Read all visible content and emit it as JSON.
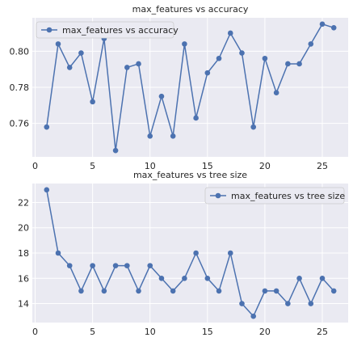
{
  "chart_data": [
    {
      "type": "line",
      "title": "max_features vs accuracy",
      "xlabel": "",
      "ylabel": "",
      "x": [
        1,
        2,
        3,
        4,
        5,
        6,
        7,
        8,
        9,
        10,
        11,
        12,
        13,
        14,
        15,
        16,
        17,
        18,
        19,
        20,
        21,
        22,
        23,
        24,
        25,
        26
      ],
      "series": [
        {
          "name": "max_features vs accuracy",
          "values": [
            0.758,
            0.804,
            0.791,
            0.799,
            0.772,
            0.807,
            0.745,
            0.791,
            0.793,
            0.753,
            0.775,
            0.753,
            0.804,
            0.763,
            0.788,
            0.796,
            0.81,
            0.799,
            0.758,
            0.796,
            0.777,
            0.793,
            0.793,
            0.804,
            0.815,
            0.813
          ]
        }
      ],
      "xlim": [
        -0.25,
        27.25
      ],
      "ylim": [
        0.7415,
        0.8185
      ],
      "xticks": [
        0,
        5,
        10,
        15,
        20,
        25
      ],
      "yticks": [
        0.76,
        0.78,
        0.8
      ],
      "ytick_labels": [
        "0.76",
        "0.78",
        "0.80"
      ],
      "grid": true,
      "legend": "upper-left"
    },
    {
      "type": "line",
      "title": "max_features vs tree size",
      "xlabel": "",
      "ylabel": "",
      "x": [
        1,
        2,
        3,
        4,
        5,
        6,
        7,
        8,
        9,
        10,
        11,
        12,
        13,
        14,
        15,
        16,
        17,
        18,
        19,
        20,
        21,
        22,
        23,
        24,
        25,
        26
      ],
      "series": [
        {
          "name": "max_features vs tree size",
          "values": [
            23,
            18,
            17,
            15,
            17,
            15,
            17,
            17,
            15,
            17,
            16,
            15,
            16,
            18,
            16,
            15,
            18,
            14,
            13,
            15,
            15,
            14,
            16,
            14,
            16,
            15
          ]
        }
      ],
      "xlim": [
        -0.25,
        27.25
      ],
      "ylim": [
        12.5,
        23.5
      ],
      "xticks": [
        0,
        5,
        10,
        15,
        20,
        25
      ],
      "yticks": [
        14,
        16,
        18,
        20,
        22
      ],
      "ytick_labels": [
        "14",
        "16",
        "18",
        "20",
        "22"
      ],
      "grid": true,
      "legend": "upper-right"
    }
  ],
  "colors": {
    "plot_bg": "#eaeaf2",
    "grid": "#ffffff",
    "line": "#4c72b0",
    "text": "#262626"
  }
}
